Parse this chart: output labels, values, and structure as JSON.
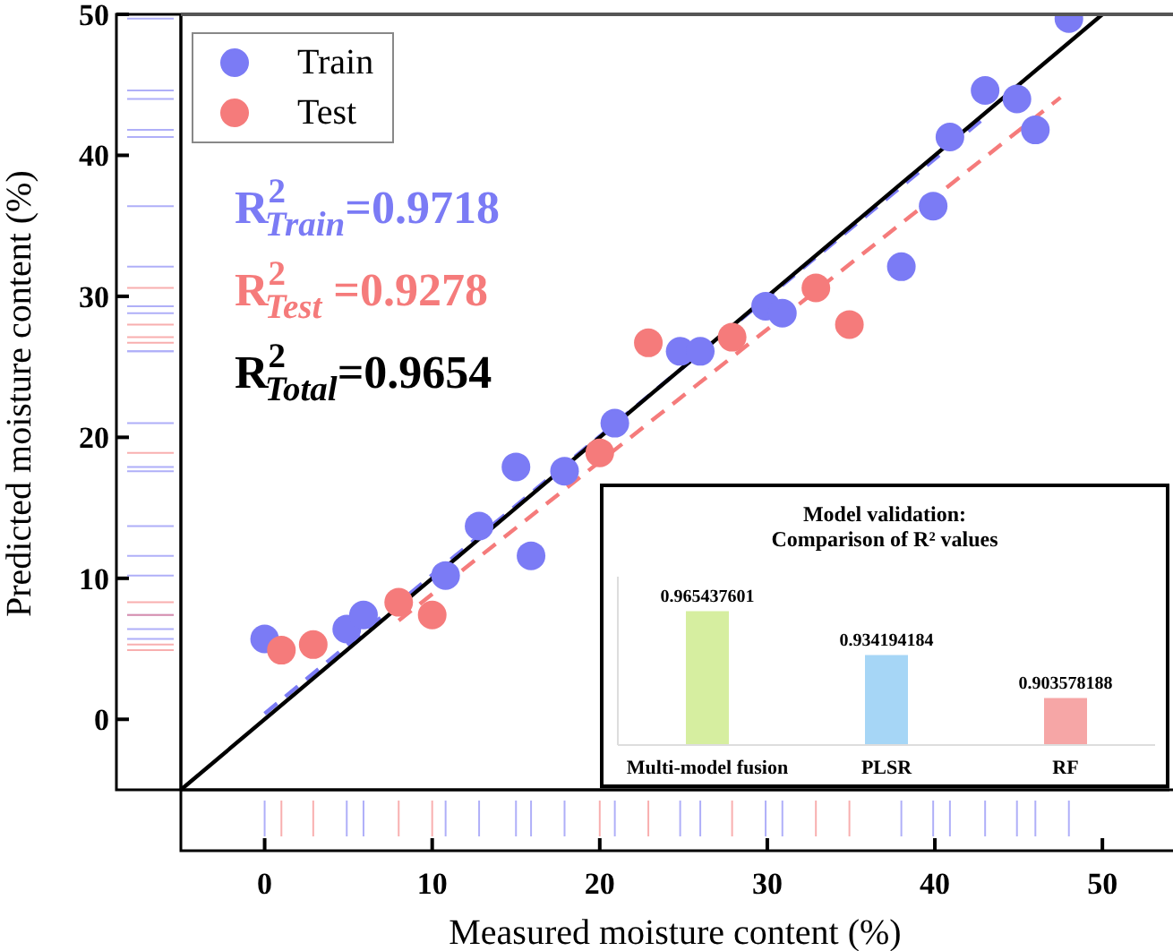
{
  "chart_data": [
    {
      "type": "scatter",
      "xlabel": "Measured moisture content (%)",
      "ylabel": "Predicted moisture content (%)",
      "xlim": [
        -5,
        54
      ],
      "ylim": [
        -5,
        50
      ],
      "xticks": [
        0,
        10,
        20,
        30,
        40,
        50
      ],
      "yticks": [
        0,
        10,
        20,
        30,
        40,
        50
      ],
      "grid": false,
      "legend": "top left",
      "marker": "circle",
      "series": [
        {
          "name": "Train",
          "type": "scatter",
          "color": "#7b7bf5",
          "x": [
            0,
            4.9,
            5.9,
            10.8,
            12.8,
            15,
            15.9,
            17.9,
            20.9,
            24.8,
            26,
            29.9,
            30.9,
            38,
            39.9,
            40.9,
            43,
            44.9,
            46,
            48
          ],
          "values": [
            5.7,
            6.4,
            7.4,
            10.2,
            13.7,
            17.9,
            11.6,
            17.6,
            21,
            26.1,
            26.1,
            29.3,
            28.8,
            32.1,
            36.4,
            41.3,
            44.6,
            44,
            41.8,
            49.7
          ]
        },
        {
          "name": "Test",
          "type": "scatter",
          "color": "#f57b7b",
          "x": [
            1,
            2.9,
            8,
            10,
            20,
            22.9,
            27.9,
            32.9,
            34.9
          ],
          "values": [
            4.9,
            5.3,
            8.3,
            7.4,
            18.9,
            26.7,
            27.1,
            30.6,
            28
          ]
        },
        {
          "type": "line",
          "color": "#7b7bf5",
          "line_style": "dashed",
          "marker": "none",
          "x": [
            0,
            42.9
          ],
          "values": [
            0.4,
            42.6
          ]
        },
        {
          "type": "line",
          "color": "#f57b7b",
          "line_style": "dashed",
          "marker": "none",
          "x": [
            8,
            47.5
          ],
          "values": [
            7,
            44.1
          ]
        },
        {
          "type": "line",
          "color": "#000000",
          "line_style": "solid",
          "marker": "none",
          "x": [
            -5,
            50
          ],
          "values": [
            -5,
            50
          ]
        }
      ],
      "annotations": [
        "R$^{2}$$_{Train}$=0.9718",
        "R$^{2}$$_{Test}$ =0.9278",
        "R$^{2}$$_{Total}$=0.9654"
      ]
    },
    {
      "type": "bar",
      "title": "Model validation:\nComparison of R² values",
      "categories": [
        "Multi-model fusion",
        "PLSR",
        "RF"
      ],
      "values": [
        0.965437601,
        0.934194184,
        0.903578188
      ],
      "colors": [
        "#d6eea0",
        "#a6d6f6",
        "#f6a6a6"
      ],
      "ylim": [
        0.87,
        0.99
      ],
      "tick_labels": "x",
      "data_labels": true
    }
  ]
}
